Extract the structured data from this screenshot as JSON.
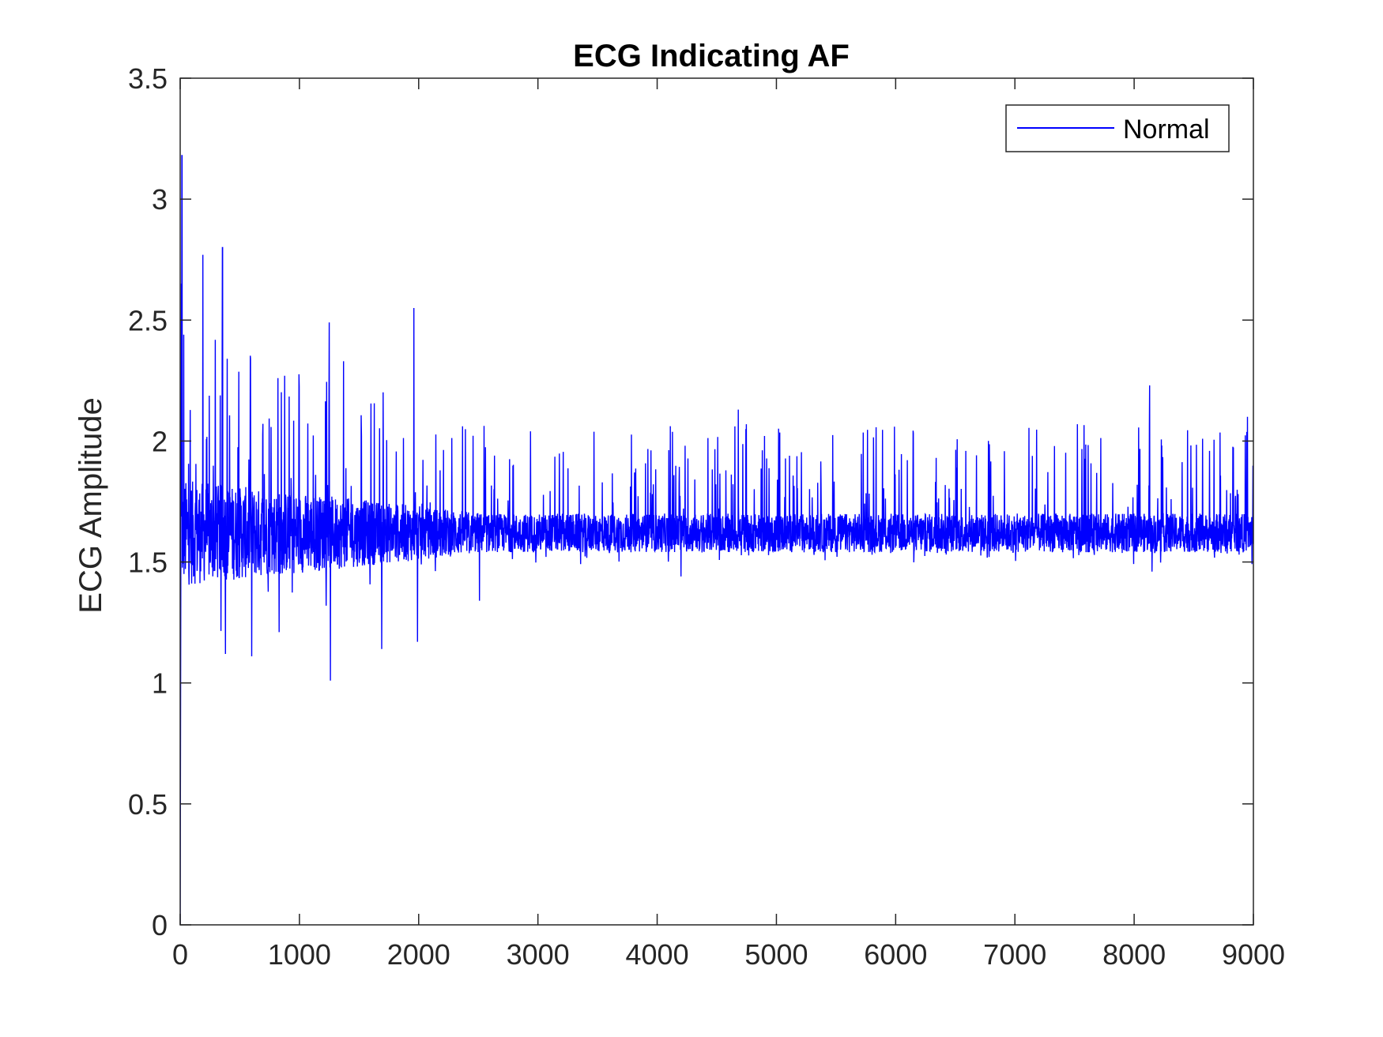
{
  "chart_data": {
    "type": "line",
    "title": "ECG Indicating AF",
    "xlabel": "",
    "ylabel": "ECG Amplitude",
    "xlim": [
      0,
      9000
    ],
    "ylim": [
      0,
      3.5
    ],
    "xticks": [
      0,
      1000,
      2000,
      3000,
      4000,
      5000,
      6000,
      7000,
      8000,
      9000
    ],
    "xtick_labels": [
      "0",
      "1000",
      "2000",
      "3000",
      "4000",
      "5000",
      "6000",
      "7000",
      "8000",
      "9000"
    ],
    "yticks": [
      0,
      0.5,
      1,
      1.5,
      2,
      2.5,
      3,
      3.5
    ],
    "ytick_labels": [
      "0",
      "0.5",
      "1",
      "1.5",
      "2",
      "2.5",
      "3",
      "3.5"
    ],
    "grid": false,
    "legend_position": "top-right",
    "series": [
      {
        "name": "Normal",
        "color": "#0000ff",
        "samples": 9000,
        "baseline": 1.62,
        "start_value": 0,
        "initial_peak": 3.18,
        "peaks": [
          {
            "x": 15,
            "y": 3.18
          },
          {
            "x": 30,
            "y": 2.44
          },
          {
            "x": 190,
            "y": 2.77
          },
          {
            "x": 355,
            "y": 2.8
          },
          {
            "x": 590,
            "y": 2.34
          },
          {
            "x": 820,
            "y": 2.26
          },
          {
            "x": 1250,
            "y": 2.49
          },
          {
            "x": 1370,
            "y": 2.33
          },
          {
            "x": 1960,
            "y": 2.55
          },
          {
            "x": 4680,
            "y": 2.13
          },
          {
            "x": 8130,
            "y": 2.23
          },
          {
            "x": 8950,
            "y": 2.1
          }
        ],
        "troughs": [
          {
            "x": 380,
            "y": 1.12
          },
          {
            "x": 600,
            "y": 1.11
          },
          {
            "x": 830,
            "y": 1.21
          },
          {
            "x": 1260,
            "y": 1.01
          },
          {
            "x": 1690,
            "y": 1.14
          },
          {
            "x": 1990,
            "y": 1.17
          },
          {
            "x": 2510,
            "y": 1.34
          },
          {
            "x": 4200,
            "y": 1.44
          },
          {
            "x": 8150,
            "y": 1.46
          }
        ]
      }
    ]
  }
}
